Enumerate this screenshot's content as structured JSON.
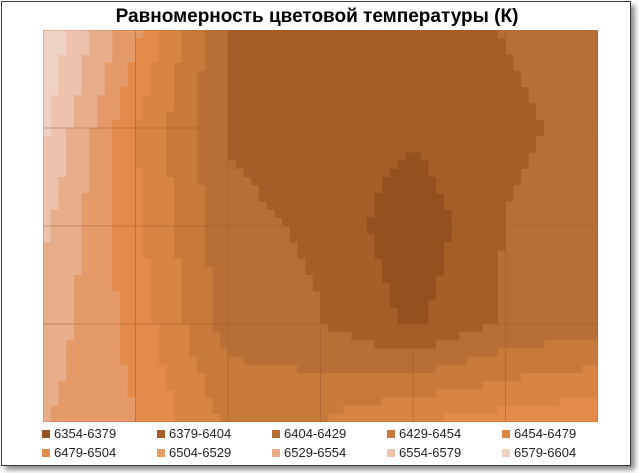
{
  "chart_data": {
    "type": "heatmap",
    "title": "Равномерность цветовой температуры (К)",
    "xlabel": "",
    "ylabel": "",
    "grid": true,
    "grid_columns": 6,
    "grid_rows": 4,
    "legend_position": "bottom",
    "bands": [
      {
        "label": "6354-6379",
        "color": "#95501F"
      },
      {
        "label": "6379-6404",
        "color": "#A65E28"
      },
      {
        "label": "6404-6429",
        "color": "#B86F35"
      },
      {
        "label": "6429-6454",
        "color": "#C87A3A"
      },
      {
        "label": "6454-6479",
        "color": "#D88442"
      },
      {
        "label": "6479-6504",
        "color": "#E48A4A"
      },
      {
        "label": "6504-6529",
        "color": "#E59A6A"
      },
      {
        "label": "6529-6554",
        "color": "#E8AD8A"
      },
      {
        "label": "6554-6579",
        "color": "#EDC3AE"
      },
      {
        "label": "6579-6604",
        "color": "#F0D2C2"
      }
    ],
    "x": [
      0,
      1,
      2,
      3,
      4,
      5,
      6
    ],
    "y": [
      0,
      1,
      2,
      3,
      4
    ],
    "values": [
      [
        6604,
        6510,
        6400,
        6392,
        6395,
        6405,
        6415
      ],
      [
        6585,
        6480,
        6402,
        6392,
        6385,
        6400,
        6410
      ],
      [
        6560,
        6485,
        6410,
        6400,
        6360,
        6405,
        6415
      ],
      [
        6545,
        6495,
        6418,
        6405,
        6375,
        6408,
        6418
      ],
      [
        6530,
        6505,
        6450,
        6455,
        6480,
        6490,
        6500
      ]
    ]
  }
}
